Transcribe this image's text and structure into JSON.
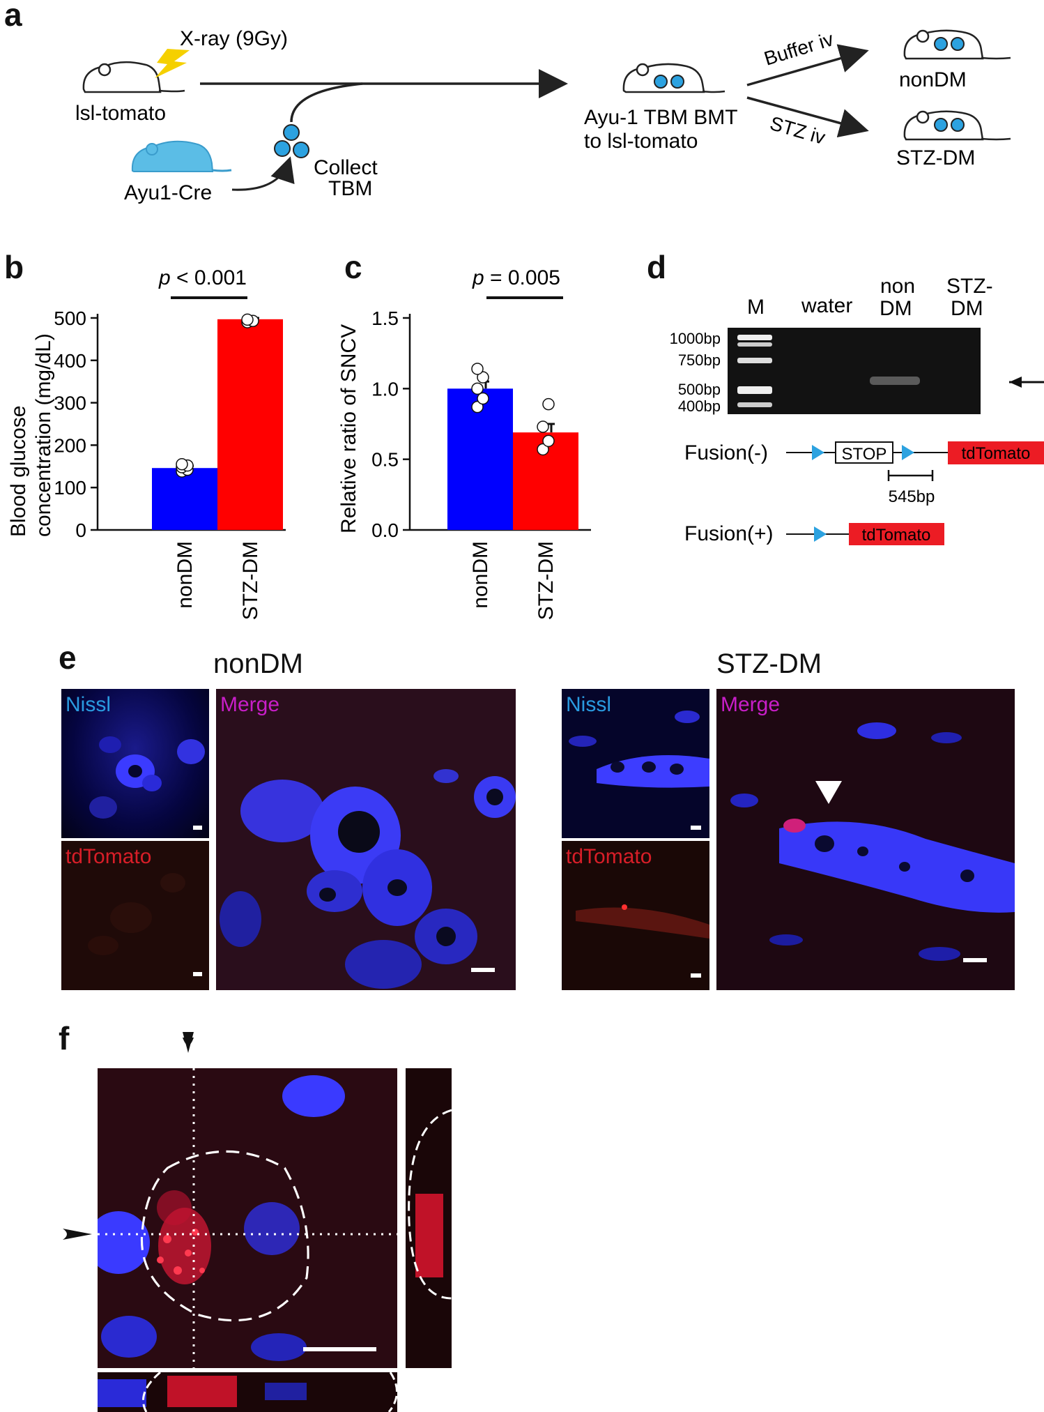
{
  "panels": {
    "a": "a",
    "b": "b",
    "c": "c",
    "d": "d",
    "e": "e",
    "f": "f"
  },
  "panel_a": {
    "xray": "X-ray (9Gy)",
    "lsl": "lsl-tomato",
    "ayu": "Ayu1-Cre",
    "collect1": "Collect",
    "collect2": "TBM",
    "bmt1": "Ayu-1 TBM BMT",
    "bmt2": "to lsl-tomato",
    "buffer": "Buffer iv",
    "stz": "STZ iv",
    "nondm": "nonDM",
    "stzdm": "STZ-DM",
    "colors": {
      "mouse_blue": "#5bbde6",
      "cell_blue": "#2ca2e0",
      "bolt": "#f5d000"
    }
  },
  "panel_b": {
    "pvalue_italic": "p",
    "pvalue_rest": " < 0.001",
    "ylabel_line1": "Blood glucose",
    "ylabel_line2": "concentration (mg/dL)",
    "yticks": [
      "500",
      "400",
      "300",
      "200",
      "100",
      "0"
    ],
    "categories": [
      "nonDM",
      "STZ-DM"
    ]
  },
  "panel_c": {
    "pvalue_italic": "p",
    "pvalue_rest": " = 0.005",
    "ylabel": "Relative ratio of SNCV",
    "yticks": [
      "1.5",
      "1.0",
      "0.5",
      "0.0"
    ],
    "categories": [
      "nonDM",
      "STZ-DM"
    ]
  },
  "panel_d": {
    "lanes": [
      "M",
      "water",
      "non",
      "DM",
      "STZ-",
      "DM"
    ],
    "ladder": [
      "1000bp",
      "750bp",
      "500bp",
      "400bp"
    ],
    "fusion_minus": "Fusion(-)",
    "fusion_plus": "Fusion(+)",
    "stop": "STOP",
    "tdtomato": "tdTomato",
    "size": "545bp"
  },
  "panel_e": {
    "nondm_title": "nonDM",
    "stzdm_title": "STZ-DM",
    "nissl": "Nissl",
    "merge": "Merge",
    "tdtomato": "tdTomato"
  },
  "chart_data": [
    {
      "type": "bar",
      "title": "",
      "xlabel": "",
      "ylabel": "Blood glucose concentration (mg/dL)",
      "categories": [
        "nonDM",
        "STZ-DM"
      ],
      "values": [
        146,
        497
      ],
      "error": [
        5,
        3
      ],
      "points": [
        [
          138,
          142,
          148,
          152,
          155
        ],
        [
          490,
          493,
          496
        ]
      ],
      "ylim": [
        0,
        500
      ],
      "yticks": [
        0,
        100,
        200,
        300,
        400,
        500
      ],
      "colors": [
        "#0000ff",
        "#ff0000"
      ],
      "annotation": "p < 0.001"
    },
    {
      "type": "bar",
      "title": "",
      "xlabel": "",
      "ylabel": "Relative ratio of SNCV",
      "categories": [
        "nonDM",
        "STZ-DM"
      ],
      "values": [
        1.0,
        0.69
      ],
      "error": [
        0.05,
        0.06
      ],
      "points": [
        [
          0.87,
          0.93,
          1.0,
          1.08,
          1.14
        ],
        [
          0.57,
          0.63,
          0.73,
          0.89
        ]
      ],
      "ylim": [
        0,
        1.5
      ],
      "yticks": [
        0,
        0.5,
        1.0,
        1.5
      ],
      "colors": [
        "#0000ff",
        "#ff0000"
      ],
      "annotation": "p = 0.005"
    }
  ]
}
